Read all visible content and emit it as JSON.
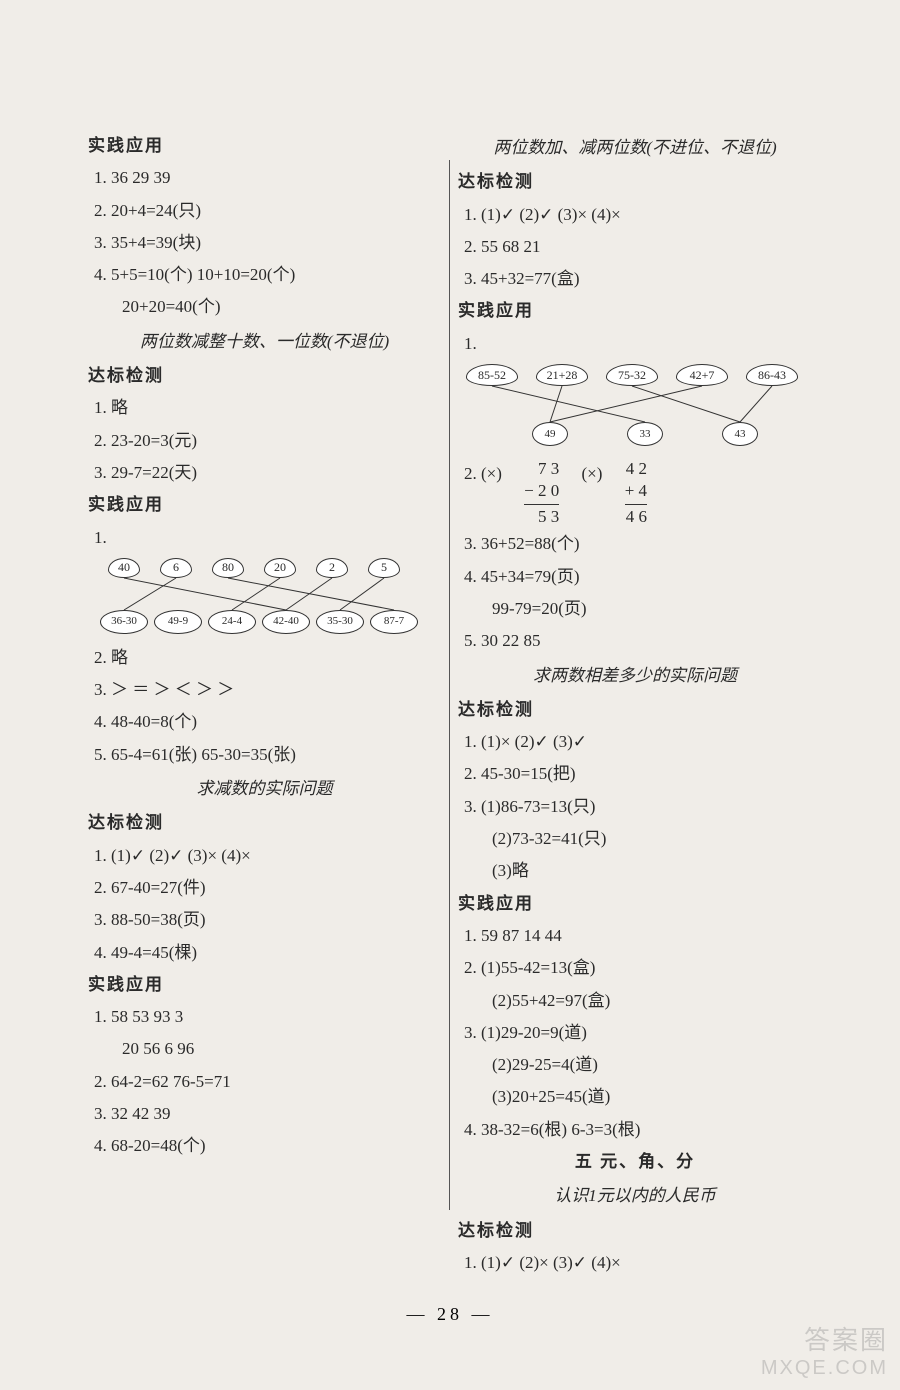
{
  "page_number": "— 28 —",
  "left": {
    "h1": "实践应用",
    "l1": "1. 36  29  39",
    "l2": "2. 20+4=24(只)",
    "l3": "3. 35+4=39(块)",
    "l4": "4. 5+5=10(个)  10+10=20(个)",
    "l4b": "20+20=40(个)",
    "sub1": "两位数减整十数、一位数(不退位)",
    "h2": "达标检测",
    "l5": "1. 略",
    "l6": "2. 23-20=3(元)",
    "l7": "3. 29-7=22(天)",
    "h3": "实践应用",
    "diagram1": {
      "top": [
        "40",
        "6",
        "80",
        "20",
        "2",
        "5"
      ],
      "bottom": [
        "36-30",
        "49-9",
        "24-4",
        "42-40",
        "35-30",
        "87-7"
      ],
      "edges": [
        [
          0,
          3
        ],
        [
          1,
          0
        ],
        [
          2,
          5
        ],
        [
          3,
          2
        ],
        [
          4,
          3
        ],
        [
          5,
          4
        ]
      ]
    },
    "l8": "2. 略",
    "l9": "3. ＞  ＝  ＞  ＜  ＞  ＞",
    "l10": "4. 48-40=8(个)",
    "l11": "5. 65-4=61(张)  65-30=35(张)",
    "sub2": "求减数的实际问题",
    "h4": "达标检测",
    "l12": "1. (1)✓  (2)✓  (3)×  (4)×",
    "l13": "2. 67-40=27(件)",
    "l14": "3. 88-50=38(页)",
    "l15": "4. 49-4=45(棵)",
    "h5": "实践应用",
    "l16": "1. 58  53  93  3",
    "l16b": "20  56  6  96",
    "l17": "2. 64-2=62  76-5=71",
    "l18": "3. 32  42  39",
    "l19": "4. 68-20=48(个)"
  },
  "right": {
    "sub1": "两位数加、减两位数(不进位、不退位)",
    "h1": "达标检测",
    "l1": "1. (1)✓  (2)✓  (3)×  (4)×",
    "l2": "2. 55  68  21",
    "l3": "3. 45+32=77(盒)",
    "h2": "实践应用",
    "diagram1": {
      "top": [
        "85-52",
        "21+28",
        "75-32",
        "42+7",
        "86-43"
      ],
      "bottom": [
        "49",
        "33",
        "43"
      ],
      "edges": [
        [
          0,
          1
        ],
        [
          1,
          0
        ],
        [
          2,
          2
        ],
        [
          3,
          0
        ],
        [
          4,
          2
        ]
      ]
    },
    "l4pre": "2. (×)",
    "l4pre2": "(×)",
    "math1": {
      "a": "7 3",
      "b": "− 2 0",
      "r": "5 3"
    },
    "math2": {
      "a": "4 2",
      "b": "+    4",
      "r": "4 6"
    },
    "l5": "3. 36+52=88(个)",
    "l6": "4. 45+34=79(页)",
    "l6b": "99-79=20(页)",
    "l7": "5. 30  22  85",
    "sub2": "求两数相差多少的实际问题",
    "h3": "达标检测",
    "l8": "1. (1)×  (2)✓  (3)✓",
    "l9": "2. 45-30=15(把)",
    "l10": "3. (1)86-73=13(只)",
    "l10b": "(2)73-32=41(只)",
    "l10c": "(3)略",
    "h4": "实践应用",
    "l11": "1. 59  87  14  44",
    "l12": "2. (1)55-42=13(盒)",
    "l12b": "(2)55+42=97(盒)",
    "l13": "3. (1)29-20=9(道)",
    "l13b": "(2)29-25=4(道)",
    "l13c": "(3)20+25=45(道)",
    "l14": "4. 38-32=6(根)  6-3=3(根)",
    "unit": "五  元、角、分",
    "sub3": "认识1元以内的人民币",
    "h5": "达标检测",
    "l15": "1. (1)✓  (2)×  (3)✓  (4)×"
  },
  "watermark1": "答案圈",
  "watermark2": "MXQE.COM"
}
